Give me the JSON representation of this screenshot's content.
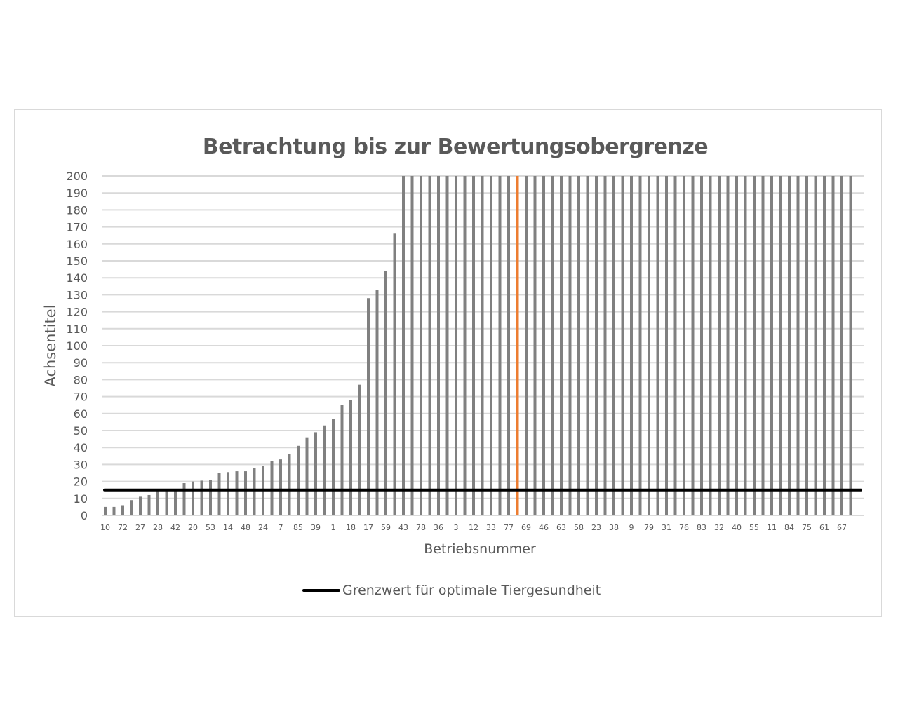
{
  "chart": {
    "title": "Betrachtung bis zur Bewertungsobergrenze",
    "xlabel": "Betriebsnummer",
    "ylabel": "Achsentitel",
    "legend_label": "Grenzwert für optimale Tiergesundheit"
  },
  "colors": {
    "bar": "#808080",
    "highlight_bar": "#ed7d31",
    "threshold_line": "#000000",
    "gridline": "#d9d9d9",
    "text": "#595959"
  },
  "chart_data": {
    "type": "bar",
    "title": "Betrachtung bis zur Bewertungsobergrenze",
    "xlabel": "Betriebsnummer",
    "ylabel": "Achsentitel",
    "ylim": [
      0,
      200
    ],
    "yticks": [
      0,
      10,
      20,
      30,
      40,
      50,
      60,
      70,
      80,
      90,
      100,
      110,
      120,
      130,
      140,
      150,
      160,
      170,
      180,
      190,
      200
    ],
    "grid": true,
    "legend_position": "bottom",
    "x_tick_labels_every_second_bar": [
      "10",
      "72",
      "27",
      "28",
      "42",
      "20",
      "53",
      "14",
      "48",
      "24",
      "7",
      "85",
      "39",
      "1",
      "18",
      "17",
      "59",
      "43",
      "78",
      "36",
      "3",
      "12",
      "33",
      "77",
      "69",
      "46",
      "63",
      "58",
      "23",
      "38",
      "9",
      "79",
      "31",
      "76",
      "83",
      "32",
      "40",
      "55",
      "11",
      "84",
      "75",
      "61",
      "67"
    ],
    "bar_count": 86,
    "values": [
      5,
      5,
      6,
      9,
      11,
      12,
      15,
      15,
      15,
      19,
      20,
      20.5,
      21,
      25,
      25.5,
      26,
      26,
      28,
      29,
      32,
      33,
      36,
      41,
      46,
      49,
      53,
      57,
      65,
      68,
      77,
      128,
      133,
      144,
      166,
      200,
      200,
      200,
      200,
      200,
      200,
      200,
      200,
      200,
      200,
      200,
      200,
      200,
      200,
      200,
      200,
      200,
      200,
      200,
      200,
      200,
      200,
      200,
      200,
      200,
      200,
      200,
      200,
      200,
      200,
      200,
      200,
      200,
      200,
      200,
      200,
      200,
      200,
      200,
      200,
      200,
      200,
      200,
      200,
      200,
      200,
      200,
      200,
      200,
      200,
      200,
      200
    ],
    "highlight_bar_index": 47,
    "series": [
      {
        "name": "Grenzwert für optimale Tiergesundheit",
        "type": "line",
        "value": 15
      }
    ]
  }
}
